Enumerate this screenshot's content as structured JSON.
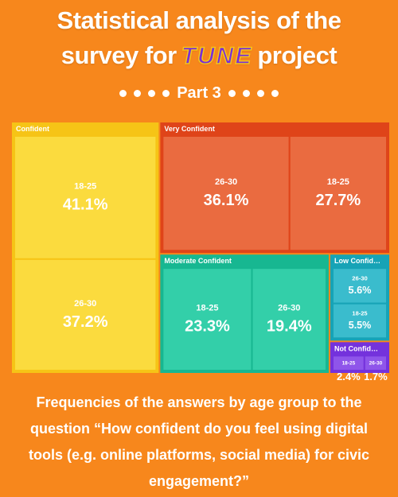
{
  "header": {
    "title_line1": "Statistical analysis of the",
    "title_line2_start": "survey for",
    "logo": "TUNE",
    "title_line2_end": "project",
    "subtitle": "Part 3"
  },
  "chart_data": {
    "type": "treemap",
    "groups": [
      {
        "name": "Confident",
        "color": "#f6c416",
        "inner_color": "#fbdb3e",
        "categories": [
          "18-25",
          "26-30"
        ],
        "values": [
          41.1,
          37.2
        ],
        "value_labels": [
          "41.1%",
          "37.2%"
        ]
      },
      {
        "name": "Very Confident",
        "color": "#df4419",
        "inner_color": "#ea6b40",
        "categories": [
          "26-30",
          "18-25"
        ],
        "values": [
          36.1,
          27.7
        ],
        "value_labels": [
          "36.1%",
          "27.7%"
        ]
      },
      {
        "name": "Moderate Confident",
        "color": "#17b791",
        "inner_color": "#33cfa9",
        "categories": [
          "18-25",
          "26-30"
        ],
        "values": [
          23.3,
          19.4
        ],
        "value_labels": [
          "23.3%",
          "19.4%"
        ]
      },
      {
        "name": "Low Confid…",
        "color": "#17a3b6",
        "inner_color": "#3abccd",
        "categories": [
          "26-30",
          "18-25"
        ],
        "values": [
          5.6,
          5.5
        ],
        "value_labels": [
          "5.6%",
          "5.5%"
        ]
      },
      {
        "name": "Not Confid…",
        "color": "#7432dc",
        "inner_color": "#8f55ea",
        "categories": [
          "18-25",
          "26-30"
        ],
        "values": [
          2.4,
          1.7
        ],
        "value_labels": [
          "2.4%",
          "1.7%"
        ]
      }
    ]
  },
  "caption": "Frequencies of the answers by age group to the question “How confident do you feel using digital tools (e.g. online platforms, social media) for civic engagement?”"
}
